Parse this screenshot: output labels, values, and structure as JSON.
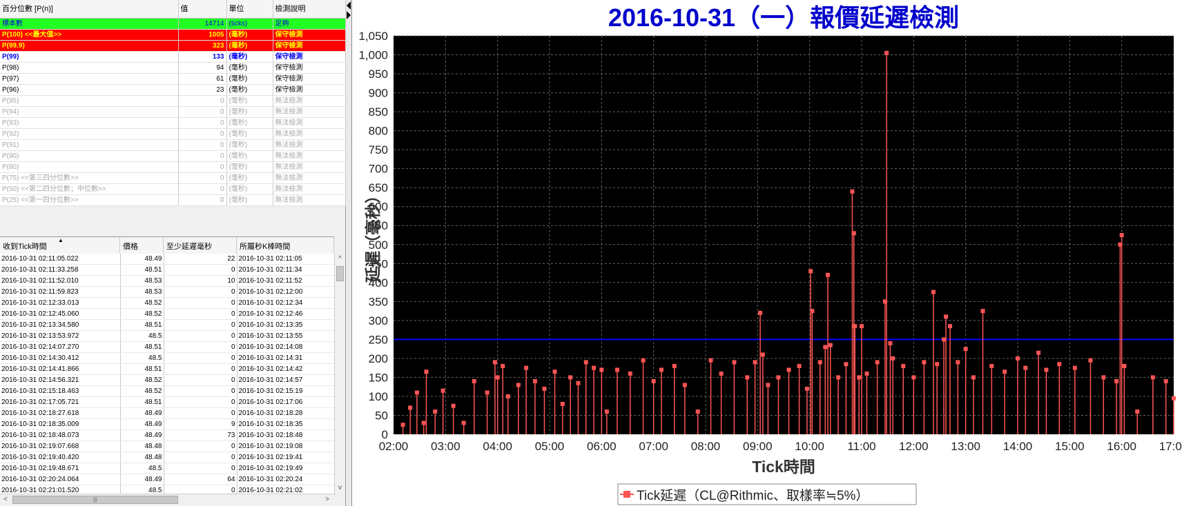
{
  "percentile_table": {
    "headers": [
      "百分位數 [P(n)]",
      "值",
      "單位",
      "檢測說明"
    ],
    "rows": [
      {
        "name": "標本數",
        "value": "14714",
        "unit": "(ticks)",
        "note": "足夠",
        "style": "green"
      },
      {
        "name": "P(100)  <<最大值>>",
        "value": "1005",
        "unit": "(毫秒)",
        "note": "保守檢測",
        "style": "red"
      },
      {
        "name": "P(99.9)",
        "value": "323",
        "unit": "(毫秒)",
        "note": "保守檢測",
        "style": "red"
      },
      {
        "name": "P(99)",
        "value": "133",
        "unit": "(毫秒)",
        "note": "保守檢測",
        "style": "blue"
      },
      {
        "name": "P(98)",
        "value": "94",
        "unit": "(毫秒)",
        "note": "保守檢測",
        "style": "normal"
      },
      {
        "name": "P(97)",
        "value": "61",
        "unit": "(毫秒)",
        "note": "保守檢測",
        "style": "normal"
      },
      {
        "name": "P(96)",
        "value": "23",
        "unit": "(毫秒)",
        "note": "保守檢測",
        "style": "normal"
      },
      {
        "name": "P(95)",
        "value": "0",
        "unit": "(毫秒)",
        "note": "無法檢測",
        "style": "gray"
      },
      {
        "name": "P(94)",
        "value": "0",
        "unit": "(毫秒)",
        "note": "無法檢測",
        "style": "gray"
      },
      {
        "name": "P(93)",
        "value": "0",
        "unit": "(毫秒)",
        "note": "無法檢測",
        "style": "gray"
      },
      {
        "name": "P(92)",
        "value": "0",
        "unit": "(毫秒)",
        "note": "無法檢測",
        "style": "gray"
      },
      {
        "name": "P(91)",
        "value": "0",
        "unit": "(毫秒)",
        "note": "無法檢測",
        "style": "gray"
      },
      {
        "name": "P(90)",
        "value": "0",
        "unit": "(毫秒)",
        "note": "無法檢測",
        "style": "gray"
      },
      {
        "name": "P(80)",
        "value": "0",
        "unit": "(毫秒)",
        "note": "無法檢測",
        "style": "gray"
      },
      {
        "name": "P(75)  <<第三四分位數>>",
        "value": "0",
        "unit": "(毫秒)",
        "note": "無法檢測",
        "style": "gray"
      },
      {
        "name": "P(50)  <<第二四分位數；中位數>>",
        "value": "0",
        "unit": "(毫秒)",
        "note": "無法檢測",
        "style": "gray"
      },
      {
        "name": "P(25)  <<第一四分位數>>",
        "value": "0",
        "unit": "(毫秒)",
        "note": "無法檢測",
        "style": "gray"
      }
    ]
  },
  "tick_table": {
    "headers": [
      "收到Tick時間",
      "價格",
      "至少延遲毫秒",
      "所屬秒K棒時間"
    ],
    "sort_indicator": "▲",
    "rows": [
      [
        "2016-10-31 02:11:05.022",
        "48.49",
        "22",
        "2016-10-31 02:11:05"
      ],
      [
        "2016-10-31 02:11:33.258",
        "48.51",
        "0",
        "2016-10-31 02:11:34"
      ],
      [
        "2016-10-31 02:11:52.010",
        "48.53",
        "10",
        "2016-10-31 02:11:52"
      ],
      [
        "2016-10-31 02:11:59.823",
        "48.53",
        "0",
        "2016-10-31 02:12:00"
      ],
      [
        "2016-10-31 02:12:33.013",
        "48.52",
        "0",
        "2016-10-31 02:12:34"
      ],
      [
        "2016-10-31 02:12:45.060",
        "48.52",
        "0",
        "2016-10-31 02:12:46"
      ],
      [
        "2016-10-31 02:13:34.580",
        "48.51",
        "0",
        "2016-10-31 02:13:35"
      ],
      [
        "2016-10-31 02:13:53.972",
        "48.5",
        "0",
        "2016-10-31 02:13:55"
      ],
      [
        "2016-10-31 02:14:07.270",
        "48.51",
        "0",
        "2016-10-31 02:14:08"
      ],
      [
        "2016-10-31 02:14:30.412",
        "48.5",
        "0",
        "2016-10-31 02:14:31"
      ],
      [
        "2016-10-31 02:14:41.866",
        "48.51",
        "0",
        "2016-10-31 02:14:42"
      ],
      [
        "2016-10-31 02:14:56.321",
        "48.52",
        "0",
        "2016-10-31 02:14:57"
      ],
      [
        "2016-10-31 02:15:18.463",
        "48.52",
        "0",
        "2016-10-31 02:15:19"
      ],
      [
        "2016-10-31 02:17:05.721",
        "48.51",
        "0",
        "2016-10-31 02:17:06"
      ],
      [
        "2016-10-31 02:18:27.618",
        "48.49",
        "0",
        "2016-10-31 02:18:28"
      ],
      [
        "2016-10-31 02:18:35.009",
        "48.49",
        "9",
        "2016-10-31 02:18:35"
      ],
      [
        "2016-10-31 02:18:48.073",
        "48.49",
        "73",
        "2016-10-31 02:18:48"
      ],
      [
        "2016-10-31 02:19:07.668",
        "48.48",
        "0",
        "2016-10-31 02:19:08"
      ],
      [
        "2016-10-31 02:19:40.420",
        "48.48",
        "0",
        "2016-10-31 02:19:41"
      ],
      [
        "2016-10-31 02:19:48.671",
        "48.5",
        "0",
        "2016-10-31 02:19:49"
      ],
      [
        "2016-10-31 02:20:24.064",
        "48.49",
        "64",
        "2016-10-31 02:20:24"
      ],
      [
        "2016-10-31 02:21:01.520",
        "48.5",
        "0",
        "2016-10-31 02:21:02"
      ]
    ]
  },
  "scrollbar": {
    "thumb_grip": "|||",
    "up": "^",
    "down": "v",
    "left": "<",
    "right": ">"
  },
  "chart_data": {
    "type": "scatter",
    "title": "2016-10-31（一）報價延遲檢測",
    "xlabel": "Tick時間",
    "ylabel": "延遲（毫秒）",
    "x_ticks": [
      "02:00",
      "03:00",
      "04:00",
      "05:00",
      "06:00",
      "07:00",
      "08:00",
      "09:00",
      "10:00",
      "11:00",
      "12:00",
      "13:00",
      "14:00",
      "15:00",
      "16:00",
      "17:00"
    ],
    "xlim": [
      2.0,
      17.0
    ],
    "ylim": [
      0,
      1050
    ],
    "y_tick_step": 50,
    "reference_line": {
      "y": 250,
      "color": "#0000ff"
    },
    "background": "#000000",
    "grid": true,
    "legend": {
      "position": "bottom-center",
      "label": "Tick延遲（CL@Rithmic、取樣率≒5%）"
    },
    "series": [
      {
        "name": "Tick延遲（CL@Rithmic、取樣率≒5%）",
        "color": "#ff5555",
        "x": [
          2.18,
          2.32,
          2.45,
          2.58,
          2.63,
          2.8,
          2.95,
          3.15,
          3.35,
          3.55,
          3.8,
          3.95,
          4.0,
          4.1,
          4.2,
          4.4,
          4.55,
          4.72,
          4.9,
          5.1,
          5.25,
          5.4,
          5.55,
          5.7,
          5.85,
          6.0,
          6.1,
          6.3,
          6.55,
          6.8,
          7.0,
          7.15,
          7.4,
          7.6,
          7.85,
          8.1,
          8.3,
          8.55,
          8.8,
          8.95,
          9.05,
          9.1,
          9.2,
          9.4,
          9.6,
          9.8,
          9.95,
          10.02,
          10.05,
          10.2,
          10.3,
          10.35,
          10.4,
          10.55,
          10.7,
          10.82,
          10.85,
          10.87,
          10.95,
          11.0,
          11.1,
          11.3,
          11.45,
          11.48,
          11.55,
          11.6,
          11.8,
          12.0,
          12.2,
          12.38,
          12.45,
          12.58,
          12.62,
          12.7,
          12.85,
          13.0,
          13.15,
          13.33,
          13.5,
          13.75,
          14.0,
          14.15,
          14.4,
          14.55,
          14.8,
          15.1,
          15.4,
          15.65,
          15.9,
          15.97,
          16.0,
          16.05,
          16.3,
          16.6,
          16.85,
          17.0
        ],
        "y": [
          25,
          70,
          110,
          30,
          165,
          60,
          115,
          75,
          30,
          140,
          110,
          190,
          150,
          180,
          100,
          130,
          175,
          140,
          120,
          165,
          80,
          150,
          135,
          190,
          175,
          170,
          60,
          170,
          160,
          195,
          140,
          170,
          180,
          130,
          60,
          195,
          160,
          190,
          150,
          190,
          320,
          210,
          130,
          150,
          170,
          180,
          120,
          430,
          325,
          190,
          230,
          420,
          235,
          150,
          185,
          640,
          530,
          285,
          150,
          285,
          160,
          190,
          350,
          1005,
          240,
          200,
          180,
          150,
          190,
          375,
          185,
          250,
          310,
          285,
          190,
          225,
          150,
          325,
          180,
          165,
          200,
          175,
          215,
          170,
          185,
          175,
          195,
          150,
          140,
          500,
          525,
          180,
          60,
          150,
          140,
          95
        ]
      }
    ]
  }
}
